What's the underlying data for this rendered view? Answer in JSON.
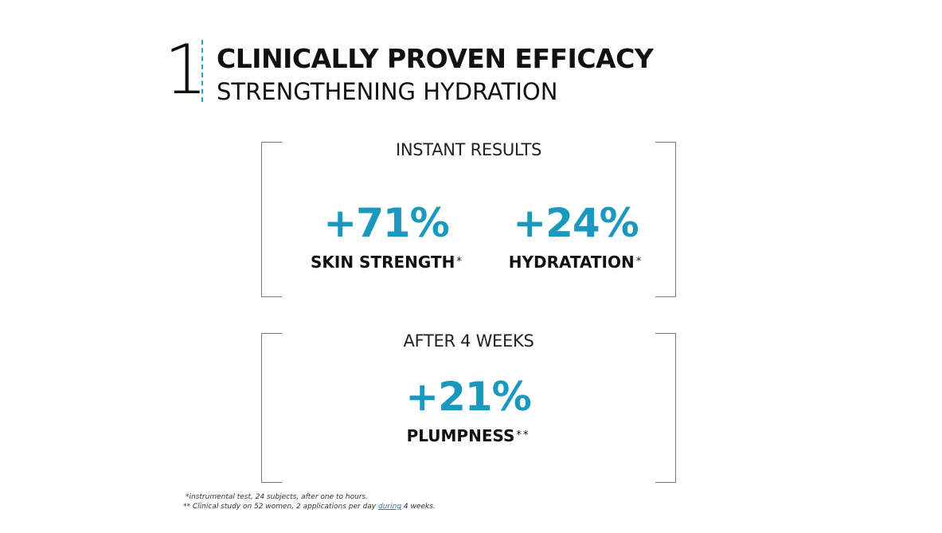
{
  "header": {
    "number": "1",
    "title": "CLINICALLY PROVEN EFFICACY",
    "subtitle": "STRENGTHENING HYDRATION"
  },
  "panels": [
    {
      "heading": "INSTANT RESULTS",
      "metrics": [
        {
          "value": "+71%",
          "label": "SKIN STRENGTH",
          "mark": "*"
        },
        {
          "value": "+24%",
          "label": "HYDRATATION",
          "mark": "*"
        }
      ]
    },
    {
      "heading": "AFTER 4 WEEKS",
      "metrics": [
        {
          "value": "+21%",
          "label": "PLUMPNESS",
          "mark": "**"
        }
      ]
    }
  ],
  "footnotes": {
    "first": "*instrumental test, 24 subjects, after one to hours.",
    "second_prefix": "**  Clinical study on 52 women, 2 applications per day ",
    "second_link": "during",
    "second_suffix": " 4 weeks."
  },
  "colors": {
    "accent": "#1a98bd",
    "divider": "#2a9fc2",
    "text": "#111111",
    "bracket": "#777777"
  }
}
